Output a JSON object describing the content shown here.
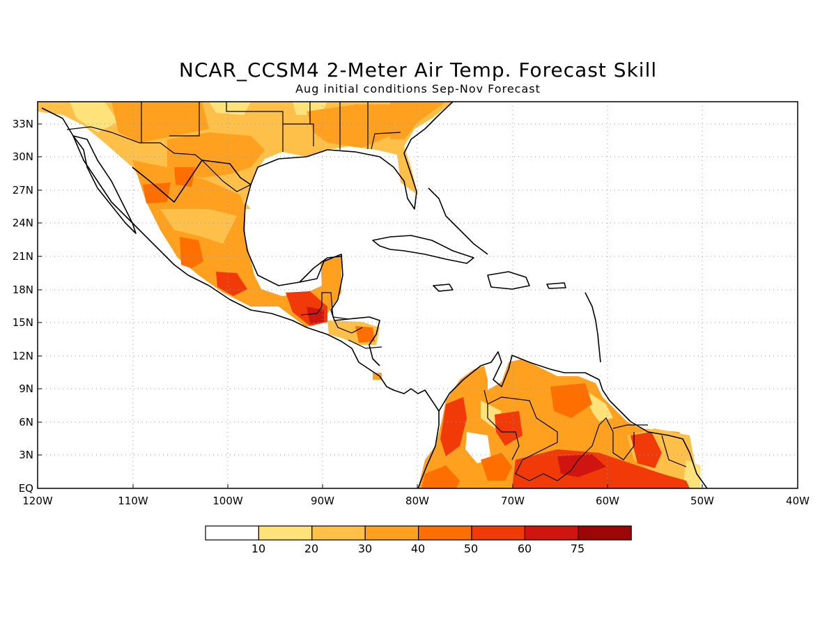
{
  "title": "NCAR_CCSM4 2-Meter Air Temp. Forecast Skill",
  "subtitle": "Aug initial conditions  Sep-Nov Forecast",
  "map": {
    "lon_range": [
      -120,
      -40
    ],
    "lat_range": [
      0,
      35
    ],
    "lat_ticks": [
      "33N",
      "30N",
      "27N",
      "24N",
      "21N",
      "18N",
      "15N",
      "12N",
      "9N",
      "6N",
      "3N",
      "EQ"
    ],
    "lon_ticks": [
      "120W",
      "110W",
      "100W",
      "90W",
      "80W",
      "70W",
      "60W",
      "50W",
      "40W"
    ],
    "grid": "dotted"
  },
  "colorbar": {
    "labels": [
      "10",
      "20",
      "30",
      "40",
      "50",
      "60",
      "75"
    ],
    "colors": [
      "#ffffff",
      "#ffe37a",
      "#ffc04a",
      "#ffa01e",
      "#ff6e00",
      "#f23a08",
      "#d01510",
      "#9c0606"
    ]
  }
}
